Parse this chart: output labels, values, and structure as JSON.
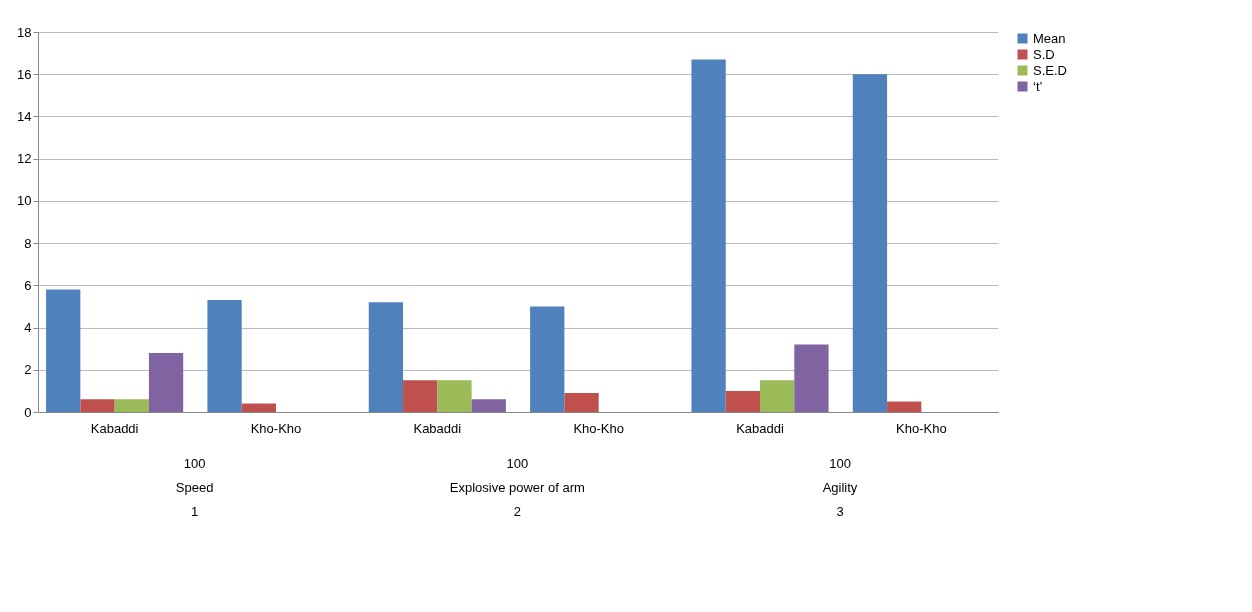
{
  "chart_data": {
    "type": "bar",
    "categories": [
      "Kabaddi",
      "Kho-Kho",
      "Kabaddi",
      "Kho-Kho",
      "Kabaddi",
      "Kho-Kho"
    ],
    "series": [
      {
        "name": "Mean",
        "color": "#4f81bd",
        "values": [
          5.8,
          5.3,
          5.2,
          5.0,
          16.7,
          16.0
        ]
      },
      {
        "name": "S.D",
        "color": "#c0504d",
        "values": [
          0.6,
          0.4,
          1.5,
          0.9,
          1.0,
          0.5
        ]
      },
      {
        "name": "S.E.D",
        "color": "#9bbb59",
        "values": [
          0.6,
          null,
          1.5,
          null,
          1.5,
          null
        ]
      },
      {
        "name": "‘t’",
        "color": "#8064a2",
        "values": [
          2.8,
          null,
          0.6,
          null,
          3.2,
          null
        ]
      }
    ],
    "ylim": [
      0,
      18
    ],
    "yticks": [
      0,
      2,
      4,
      6,
      8,
      10,
      12,
      14,
      16,
      18
    ],
    "grid": "y",
    "legend": "right",
    "annotations": [
      "100",
      "Speed",
      "1",
      "100",
      "Explosive power of arm",
      "2",
      "100",
      "Agility",
      "3"
    ]
  }
}
